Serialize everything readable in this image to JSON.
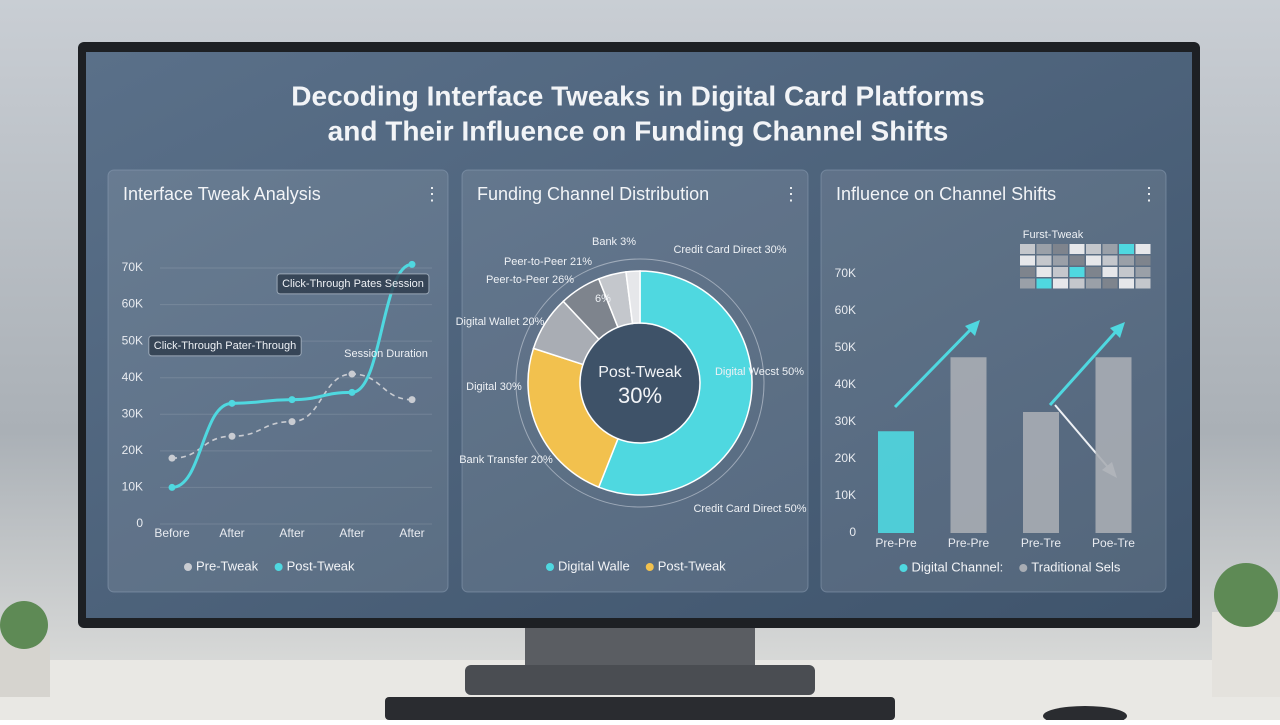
{
  "title": "Decoding Interface Tweaks in Digital Card Platforms",
  "subtitle": "and Their Influence on Funding Channel Shifts",
  "chart_data": [
    {
      "type": "line",
      "title": "Interface Tweak Analysis",
      "categories": [
        "Before",
        "After",
        "After",
        "After",
        "After"
      ],
      "series": [
        {
          "name": "Pre-Tweak",
          "color": "#c9ccd2",
          "values": [
            18000,
            24000,
            28000,
            41000,
            34000
          ]
        },
        {
          "name": "Post-Tweak",
          "color": "#4fd8e0",
          "values": [
            10000,
            33000,
            34000,
            36000,
            71000
          ]
        }
      ],
      "ylim": [
        0,
        70000
      ],
      "yticks": [
        0,
        {
          "value": 10000,
          "label": "10K"
        },
        {
          "value": 20000,
          "label": "20K"
        },
        {
          "value": 30000,
          "label": "30K"
        },
        {
          "value": 40000,
          "label": "40K"
        },
        {
          "value": 50000,
          "label": "50K"
        },
        {
          "value": 60000,
          "label": "60K"
        },
        {
          "value": 70000,
          "label": "70K"
        }
      ],
      "grid": true,
      "annotations": [
        "Click-Through Pater-Through",
        "Click-Through Pates Session",
        "Session Duration"
      ]
    },
    {
      "type": "donut",
      "title": "Funding Channel Distribution",
      "center_label": "Post-Tweak",
      "center_value": "30%",
      "values": [
        56,
        24,
        8,
        6,
        4,
        2
      ],
      "colors": [
        "#4fd8e0",
        "#f2c14e",
        "#a9adb4",
        "#7e848d",
        "#c4c7cc",
        "#e6e7ea"
      ],
      "legend": [
        {
          "name": "Digital Walle",
          "color": "#4fd8e0"
        },
        {
          "name": "Post-Tweak",
          "color": "#f2c14e"
        }
      ],
      "annotations": [
        "Bank 3%",
        "Peer-to-Peer 21%",
        "Peer-to-Peer 26%",
        "Digital Wallet 20%",
        "Digital 30%",
        "Bank Transfer 20%",
        "Credit Card Direct 30%",
        "Digital Wecst 50%",
        "Credit Card Direct 50%",
        "6%"
      ]
    },
    {
      "type": "bar",
      "title": "Influence on Channel Shifts",
      "categories": [
        "Pre-Pre",
        "Pre-Pre",
        "Pre-Tre",
        "Poe-Tre"
      ],
      "series": [
        {
          "name": "Digital Channel:",
          "color": "#4fd8e0",
          "values": [
            27500,
            null,
            null,
            null
          ]
        },
        {
          "name": "Traditional Sels",
          "color": "#a9adb4",
          "values": [
            null,
            47500,
            32700,
            47500
          ]
        }
      ],
      "ylim": [
        0,
        70000
      ],
      "yticks": [
        0,
        {
          "value": 10000,
          "label": "10K"
        },
        {
          "value": 20000,
          "label": "20K"
        },
        {
          "value": 30000,
          "label": "30K"
        },
        {
          "value": 40000,
          "label": "40K"
        },
        {
          "value": 50000,
          "label": "50K"
        },
        {
          "value": 60000,
          "label": "60K"
        },
        {
          "value": 70000,
          "label": "70K"
        }
      ],
      "annotations": [
        "Furst-Tweak"
      ]
    }
  ]
}
